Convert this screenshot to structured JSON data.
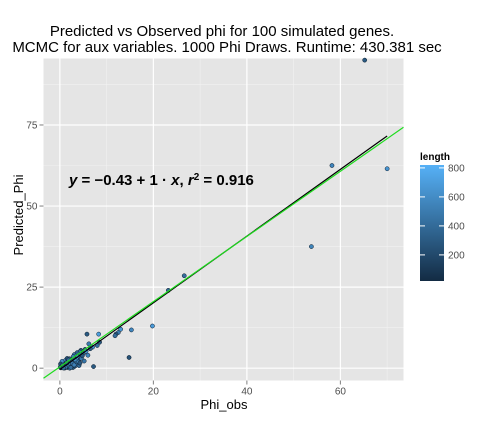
{
  "chart_data": {
    "type": "scatter",
    "title": [
      "Predicted vs Observed phi for 100 simulated genes.",
      "MCMC for aux variables. 1000 Phi Draws. Runtime: 430.381 sec"
    ],
    "xlabel": "Phi_obs",
    "ylabel": "Predicted_Phi",
    "xlim": [
      -3.5,
      73.5
    ],
    "ylim": [
      -3.8,
      95.5
    ],
    "x_ticks": [
      0,
      20,
      40,
      60
    ],
    "y_ticks": [
      0,
      25,
      50,
      75
    ],
    "grid": true,
    "background": "#e5e5e5",
    "equation": "y = -0.43 + 1 · x,  r² = 0.916",
    "equation_parts": {
      "y": "y",
      "eq1": " = −0.43 + 1 · ",
      "x": "x",
      "comma": ",  ",
      "r": "r",
      "sup": "2",
      "eq2": " = 0.916"
    },
    "legend": {
      "title": "length",
      "placement": "right",
      "min": 20,
      "max": 820,
      "ticks": [
        200,
        400,
        600,
        800
      ],
      "color_low": "#132b43",
      "color_high": "#56b1f7"
    },
    "lines": [
      {
        "name": "",
        "color": "#000000",
        "points": [
          [
            0,
            -0.43
          ],
          [
            70,
            71.6
          ]
        ]
      },
      {
        "name": "",
        "color": "#1edc1e",
        "points": [
          [
            -3.5,
            -3.1
          ],
          [
            73.5,
            74.3
          ]
        ]
      }
    ],
    "points": [
      [
        65.2,
        95.0,
        300
      ],
      [
        58.2,
        62.5,
        560
      ],
      [
        70.0,
        61.5,
        650
      ],
      [
        53.8,
        37.5,
        550
      ],
      [
        26.6,
        28.5,
        420
      ],
      [
        23.2,
        24.0,
        380
      ],
      [
        19.8,
        13.0,
        680
      ],
      [
        15.3,
        11.8,
        560
      ],
      [
        14.8,
        3.3,
        250
      ],
      [
        13.0,
        12.0,
        650
      ],
      [
        12.5,
        11.0,
        500
      ],
      [
        12.0,
        10.5,
        300
      ],
      [
        11.8,
        10.0,
        420
      ],
      [
        8.3,
        10.5,
        700
      ],
      [
        5.8,
        10.5,
        300
      ],
      [
        6.2,
        7.5,
        500
      ],
      [
        7.0,
        6.5,
        650
      ],
      [
        8.0,
        7.0,
        420
      ],
      [
        8.5,
        8.0,
        300
      ],
      [
        4.5,
        5.5,
        250
      ],
      [
        5.0,
        4.5,
        400
      ],
      [
        4.2,
        5.0,
        500
      ],
      [
        3.8,
        3.5,
        600
      ],
      [
        4.0,
        2.5,
        350
      ],
      [
        3.5,
        2.8,
        700
      ],
      [
        7.2,
        0.5,
        300
      ],
      [
        3.0,
        1.5,
        200
      ],
      [
        2.6,
        2.2,
        400
      ],
      [
        2.2,
        1.0,
        500
      ],
      [
        1.8,
        0.3,
        300
      ],
      [
        1.5,
        1.8,
        650
      ],
      [
        1.3,
        0.8,
        200
      ],
      [
        1.0,
        0.5,
        420
      ],
      [
        0.8,
        1.2,
        550
      ],
      [
        0.5,
        0.2,
        300
      ],
      [
        0.3,
        0.8,
        700
      ],
      [
        0.2,
        0.1,
        250
      ],
      [
        2.0,
        0.6,
        380
      ],
      [
        2.5,
        0.9,
        600
      ],
      [
        1.6,
        0.2,
        450
      ],
      [
        1.1,
        1.4,
        320
      ],
      [
        0.7,
        0.4,
        520
      ],
      [
        0.4,
        1.0,
        260
      ],
      [
        3.2,
        0.6,
        480
      ],
      [
        2.8,
        0.2,
        340
      ],
      [
        2.3,
        1.6,
        620
      ],
      [
        1.9,
        1.1,
        280
      ],
      [
        1.4,
        0.6,
        560
      ],
      [
        0.9,
        0.1,
        400
      ],
      [
        0.6,
        0.7,
        230
      ],
      [
        0.1,
        0.4,
        660
      ],
      [
        3.6,
        1.2,
        370
      ],
      [
        4.6,
        3.0,
        510
      ],
      [
        5.4,
        5.8,
        290
      ],
      [
        2.9,
        3.1,
        430
      ],
      [
        1.2,
        2.4,
        590
      ],
      [
        0.5,
        1.6,
        310
      ],
      [
        3.3,
        2.0,
        470
      ],
      [
        4.4,
        4.2,
        350
      ],
      [
        2.1,
        0.0,
        540
      ],
      [
        1.7,
        0.9,
        260
      ],
      [
        2.4,
        1.3,
        630
      ],
      [
        0.35,
        0.3,
        410
      ],
      [
        1.05,
        0.05,
        300
      ],
      [
        2.7,
        0.75,
        380
      ],
      [
        3.9,
        1.9,
        520
      ],
      [
        4.8,
        3.8,
        280
      ],
      [
        5.6,
        5.2,
        640
      ],
      [
        6.5,
        6.0,
        330
      ],
      [
        3.1,
        4.2,
        460
      ],
      [
        1.55,
        3.0,
        250
      ],
      [
        0.25,
        0.55,
        580
      ],
      [
        1.35,
        0.35,
        340
      ],
      [
        2.15,
        2.05,
        490
      ],
      [
        0.85,
        0.85,
        270
      ],
      [
        1.95,
        1.45,
        610
      ],
      [
        2.55,
        0.45,
        360
      ],
      [
        3.45,
        0.95,
        440
      ],
      [
        0.65,
        0.15,
        520
      ],
      [
        1.25,
        1.05,
        300
      ],
      [
        4.1,
        0.8,
        390
      ],
      [
        5.2,
        2.2,
        470
      ],
      [
        3.7,
        4.8,
        330
      ],
      [
        6.0,
        4.0,
        560
      ],
      [
        2.05,
        2.9,
        280
      ],
      [
        0.45,
        2.1,
        600
      ],
      [
        1.45,
        1.75,
        320
      ],
      [
        2.65,
        1.55,
        450
      ],
      [
        0.15,
        1.3,
        250
      ],
      [
        3.05,
        1.0,
        530
      ],
      [
        1.75,
        0.5,
        380
      ],
      [
        0.95,
        0.7,
        300
      ],
      [
        2.35,
        0.2,
        410
      ],
      [
        1.15,
        0.25,
        470
      ],
      [
        0.55,
        0.95,
        340
      ],
      [
        3.25,
        2.6,
        580
      ],
      [
        4.3,
        1.6,
        290
      ],
      [
        2.85,
        3.6,
        500
      ],
      [
        1.85,
        2.55,
        360
      ],
      [
        0.75,
        0.05,
        420
      ]
    ]
  }
}
